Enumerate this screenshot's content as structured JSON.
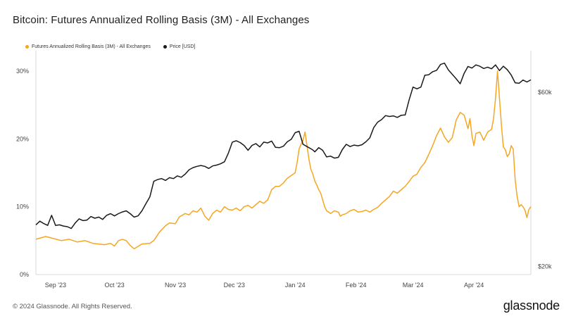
{
  "chart_data": {
    "type": "line",
    "title": "Bitcoin: Futures Annualized Rolling Basis (3M) - All Exchanges",
    "x_labels": [
      "Sep '23",
      "Oct '23",
      "Nov '23",
      "Dec '23",
      "Jan '24",
      "Feb '24",
      "Mar '24",
      "Apr '24"
    ],
    "left_axis": {
      "ticks": [
        "0%",
        "10%",
        "20%",
        "30%"
      ],
      "ylim": [
        0,
        33
      ]
    },
    "right_axis": {
      "ticks": [
        "$20k",
        "$60k"
      ],
      "scale": "log",
      "ylim": [
        19000,
        78000
      ]
    },
    "grid": false,
    "legend_position": "top-left",
    "series": [
      {
        "name": "Futures Annualized Rolling Basis (3M) - All Exchanges",
        "color": "#f5a623",
        "axis": "left",
        "unit": "%",
        "points": [
          [
            0,
            5.2
          ],
          [
            5,
            5.6
          ],
          [
            9,
            5.3
          ],
          [
            13,
            5.0
          ],
          [
            17,
            5.2
          ],
          [
            21,
            4.8
          ],
          [
            25,
            5.0
          ],
          [
            29,
            4.6
          ],
          [
            32,
            4.5
          ],
          [
            35,
            4.4
          ],
          [
            38,
            4.6
          ],
          [
            40,
            4.2
          ],
          [
            42,
            5.0
          ],
          [
            44,
            5.2
          ],
          [
            46,
            5.0
          ],
          [
            48,
            4.3
          ],
          [
            50,
            3.8
          ],
          [
            54,
            4.5
          ],
          [
            58,
            4.6
          ],
          [
            60,
            5.0
          ],
          [
            63,
            6.3
          ],
          [
            66,
            7.2
          ],
          [
            68,
            7.6
          ],
          [
            71,
            7.5
          ],
          [
            73,
            8.5
          ],
          [
            76,
            9.0
          ],
          [
            78,
            8.8
          ],
          [
            80,
            9.4
          ],
          [
            82,
            9.2
          ],
          [
            84,
            9.8
          ],
          [
            86,
            8.6
          ],
          [
            88,
            8.0
          ],
          [
            90,
            9.0
          ],
          [
            92,
            9.5
          ],
          [
            94,
            9.2
          ],
          [
            96,
            10.0
          ],
          [
            98,
            9.6
          ],
          [
            100,
            9.5
          ],
          [
            102,
            9.8
          ],
          [
            104,
            9.4
          ],
          [
            106,
            10.0
          ],
          [
            108,
            10.2
          ],
          [
            110,
            9.8
          ],
          [
            112,
            10.3
          ],
          [
            114,
            10.8
          ],
          [
            116,
            10.5
          ],
          [
            118,
            11.0
          ],
          [
            120,
            12.5
          ],
          [
            122,
            13.0
          ],
          [
            124,
            13.0
          ],
          [
            126,
            13.5
          ],
          [
            128,
            14.2
          ],
          [
            130,
            14.6
          ],
          [
            132,
            15.0
          ],
          [
            133,
            16.5
          ],
          [
            134,
            18.5
          ],
          [
            135,
            19.2
          ],
          [
            136,
            19.8
          ],
          [
            137,
            21.0
          ],
          [
            138,
            19.0
          ],
          [
            139,
            17.0
          ],
          [
            140,
            15.5
          ],
          [
            141,
            14.8
          ],
          [
            142,
            13.8
          ],
          [
            143,
            13.2
          ],
          [
            144,
            12.5
          ],
          [
            145,
            12.0
          ],
          [
            146,
            11.0
          ],
          [
            147,
            10.0
          ],
          [
            148,
            9.4
          ],
          [
            150,
            9.0
          ],
          [
            152,
            9.4
          ],
          [
            154,
            9.2
          ],
          [
            155,
            8.6
          ],
          [
            156,
            8.8
          ],
          [
            158,
            9.0
          ],
          [
            160,
            9.4
          ],
          [
            162,
            9.6
          ],
          [
            164,
            9.2
          ],
          [
            166,
            9.3
          ],
          [
            168,
            9.5
          ],
          [
            170,
            9.2
          ],
          [
            172,
            9.6
          ],
          [
            174,
            9.9
          ],
          [
            176,
            10.5
          ],
          [
            178,
            11.0
          ],
          [
            180,
            11.5
          ],
          [
            182,
            12.3
          ],
          [
            184,
            12.0
          ],
          [
            186,
            12.5
          ],
          [
            188,
            13.0
          ],
          [
            190,
            13.7
          ],
          [
            192,
            14.5
          ],
          [
            194,
            14.8
          ],
          [
            196,
            15.8
          ],
          [
            198,
            16.5
          ],
          [
            200,
            17.7
          ],
          [
            202,
            19.0
          ],
          [
            204,
            20.5
          ],
          [
            206,
            21.6
          ],
          [
            208,
            20.3
          ],
          [
            210,
            19.5
          ],
          [
            212,
            20.2
          ],
          [
            214,
            22.8
          ],
          [
            216,
            23.9
          ],
          [
            218,
            23.5
          ],
          [
            220,
            21.5
          ],
          [
            221,
            23.0
          ],
          [
            222,
            20.5
          ],
          [
            223,
            19.0
          ],
          [
            224,
            20.8
          ],
          [
            226,
            21.0
          ],
          [
            228,
            19.8
          ],
          [
            230,
            21.0
          ],
          [
            232,
            21.4
          ],
          [
            233,
            23.0
          ],
          [
            234,
            26.0
          ],
          [
            235,
            30.0
          ],
          [
            236,
            26.0
          ],
          [
            237,
            22.0
          ],
          [
            238,
            18.8
          ],
          [
            239,
            18.4
          ],
          [
            240,
            17.4
          ],
          [
            241,
            17.8
          ],
          [
            242,
            19.0
          ],
          [
            243,
            18.5
          ],
          [
            244,
            14.0
          ],
          [
            245,
            11.5
          ],
          [
            246,
            10.0
          ],
          [
            247,
            10.3
          ],
          [
            248,
            10.0
          ],
          [
            249,
            9.5
          ],
          [
            250,
            8.4
          ],
          [
            251,
            9.6
          ],
          [
            252,
            10.0
          ]
        ]
      },
      {
        "name": "Price [USD]",
        "color": "#1a1a1a",
        "axis": "right",
        "unit": "USD",
        "points": [
          [
            0,
            26000
          ],
          [
            2,
            26600
          ],
          [
            4,
            26200
          ],
          [
            6,
            25900
          ],
          [
            8,
            27600
          ],
          [
            10,
            25900
          ],
          [
            12,
            26000
          ],
          [
            14,
            25800
          ],
          [
            16,
            25700
          ],
          [
            18,
            25400
          ],
          [
            20,
            26300
          ],
          [
            22,
            27000
          ],
          [
            24,
            26700
          ],
          [
            26,
            26800
          ],
          [
            28,
            27400
          ],
          [
            30,
            27100
          ],
          [
            32,
            27300
          ],
          [
            34,
            26900
          ],
          [
            36,
            27600
          ],
          [
            38,
            27900
          ],
          [
            40,
            27500
          ],
          [
            42,
            27900
          ],
          [
            44,
            28200
          ],
          [
            46,
            28400
          ],
          [
            48,
            27900
          ],
          [
            50,
            27300
          ],
          [
            52,
            27500
          ],
          [
            54,
            28400
          ],
          [
            56,
            29700
          ],
          [
            58,
            31000
          ],
          [
            60,
            34200
          ],
          [
            62,
            34600
          ],
          [
            64,
            34800
          ],
          [
            66,
            34400
          ],
          [
            68,
            35000
          ],
          [
            70,
            34800
          ],
          [
            72,
            35400
          ],
          [
            74,
            35100
          ],
          [
            76,
            35800
          ],
          [
            78,
            36800
          ],
          [
            80,
            37300
          ],
          [
            82,
            37600
          ],
          [
            84,
            37800
          ],
          [
            86,
            37600
          ],
          [
            88,
            37100
          ],
          [
            90,
            37700
          ],
          [
            92,
            37900
          ],
          [
            94,
            38200
          ],
          [
            96,
            38700
          ],
          [
            98,
            40900
          ],
          [
            100,
            43800
          ],
          [
            102,
            44200
          ],
          [
            104,
            43700
          ],
          [
            106,
            42900
          ],
          [
            108,
            41600
          ],
          [
            110,
            42900
          ],
          [
            112,
            43400
          ],
          [
            114,
            42500
          ],
          [
            116,
            43800
          ],
          [
            118,
            43600
          ],
          [
            120,
            44100
          ],
          [
            122,
            42400
          ],
          [
            124,
            42300
          ],
          [
            126,
            42700
          ],
          [
            128,
            43900
          ],
          [
            130,
            44600
          ],
          [
            132,
            46500
          ],
          [
            134,
            46900
          ],
          [
            136,
            43200
          ],
          [
            138,
            42600
          ],
          [
            140,
            42000
          ],
          [
            141,
            41700
          ],
          [
            142,
            41200
          ],
          [
            144,
            42300
          ],
          [
            146,
            41600
          ],
          [
            148,
            39900
          ],
          [
            150,
            40100
          ],
          [
            152,
            39600
          ],
          [
            154,
            39800
          ],
          [
            156,
            41800
          ],
          [
            158,
            43200
          ],
          [
            160,
            42600
          ],
          [
            162,
            43000
          ],
          [
            164,
            42800
          ],
          [
            166,
            43100
          ],
          [
            168,
            43900
          ],
          [
            170,
            45000
          ],
          [
            172,
            48000
          ],
          [
            174,
            49700
          ],
          [
            176,
            50500
          ],
          [
            178,
            51800
          ],
          [
            180,
            51500
          ],
          [
            182,
            51700
          ],
          [
            184,
            51200
          ],
          [
            186,
            51900
          ],
          [
            188,
            52000
          ],
          [
            190,
            57100
          ],
          [
            192,
            62000
          ],
          [
            194,
            61300
          ],
          [
            196,
            62000
          ],
          [
            198,
            66800
          ],
          [
            200,
            67000
          ],
          [
            202,
            68300
          ],
          [
            204,
            68900
          ],
          [
            206,
            71500
          ],
          [
            208,
            72100
          ],
          [
            210,
            69100
          ],
          [
            212,
            67200
          ],
          [
            214,
            65300
          ],
          [
            216,
            63300
          ],
          [
            218,
            67600
          ],
          [
            220,
            70600
          ],
          [
            222,
            69900
          ],
          [
            224,
            71300
          ],
          [
            226,
            70700
          ],
          [
            228,
            69700
          ],
          [
            230,
            70300
          ],
          [
            232,
            69600
          ],
          [
            234,
            71300
          ],
          [
            236,
            68800
          ],
          [
            238,
            70700
          ],
          [
            240,
            69200
          ],
          [
            242,
            66900
          ],
          [
            244,
            63700
          ],
          [
            246,
            63500
          ],
          [
            248,
            64800
          ],
          [
            250,
            64000
          ],
          [
            252,
            64900
          ]
        ]
      }
    ]
  },
  "footer": {
    "copyright": "© 2024 Glassnode. All Rights Reserved.",
    "logo_text": "glassnode"
  }
}
